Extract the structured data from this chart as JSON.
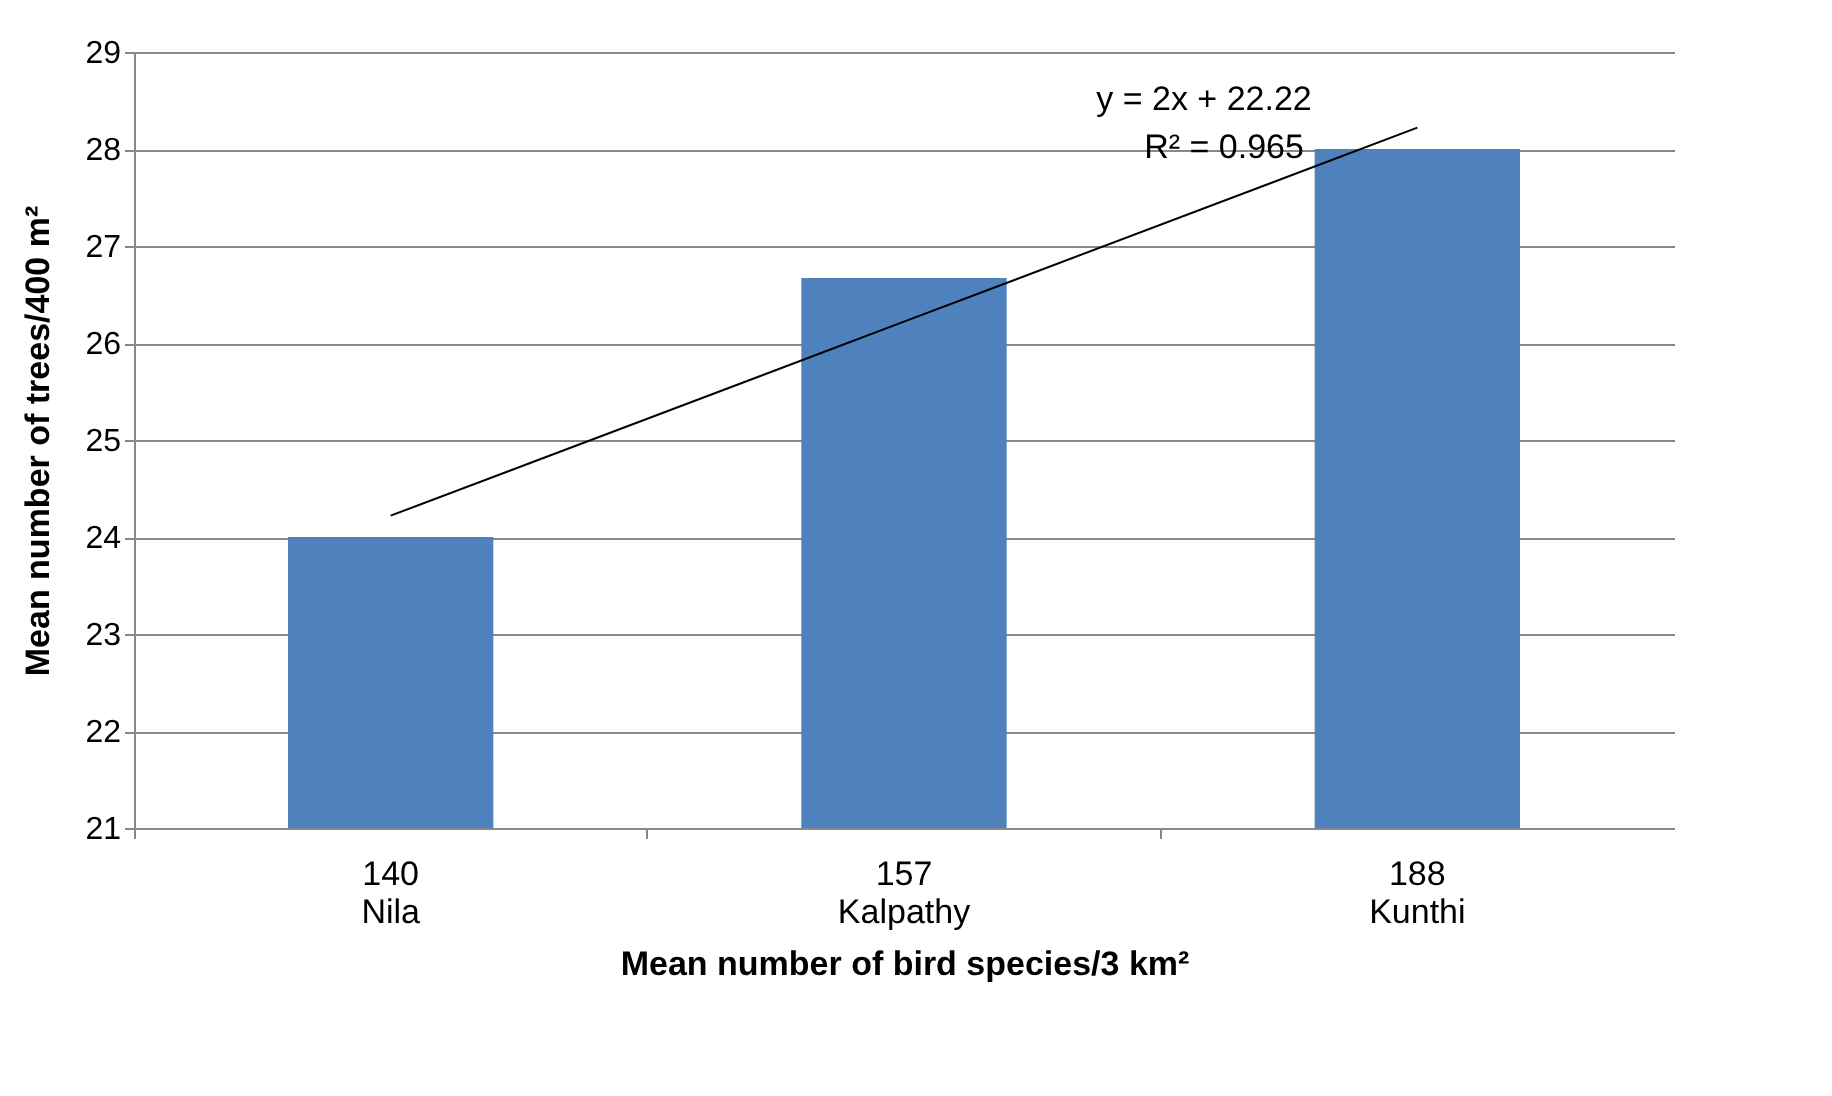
{
  "chart_data": {
    "type": "bar",
    "categories": [
      "140\nNila",
      "157\nKalpathy",
      "188\nKunthi"
    ],
    "series": [
      {
        "color": "#4f81bd",
        "values": [
          24,
          26.67,
          28
        ]
      },
      {
        "type": "line",
        "color": "#000000",
        "x": [
          "140\nNila",
          "157\nKalpathy",
          "188\nKunthi"
        ],
        "values": [
          24.22,
          26.22,
          28.22
        ]
      }
    ],
    "xlabel": "Mean number of bird species/3 km²",
    "ylabel": "Mean number of trees/400 m²",
    "ylim": [
      21,
      29
    ],
    "yticks": [
      21,
      22,
      23,
      24,
      25,
      26,
      27,
      28,
      29
    ],
    "grid": "y",
    "annotations": [
      "y = 2x + 22.22",
      "R² = 0.965"
    ]
  }
}
